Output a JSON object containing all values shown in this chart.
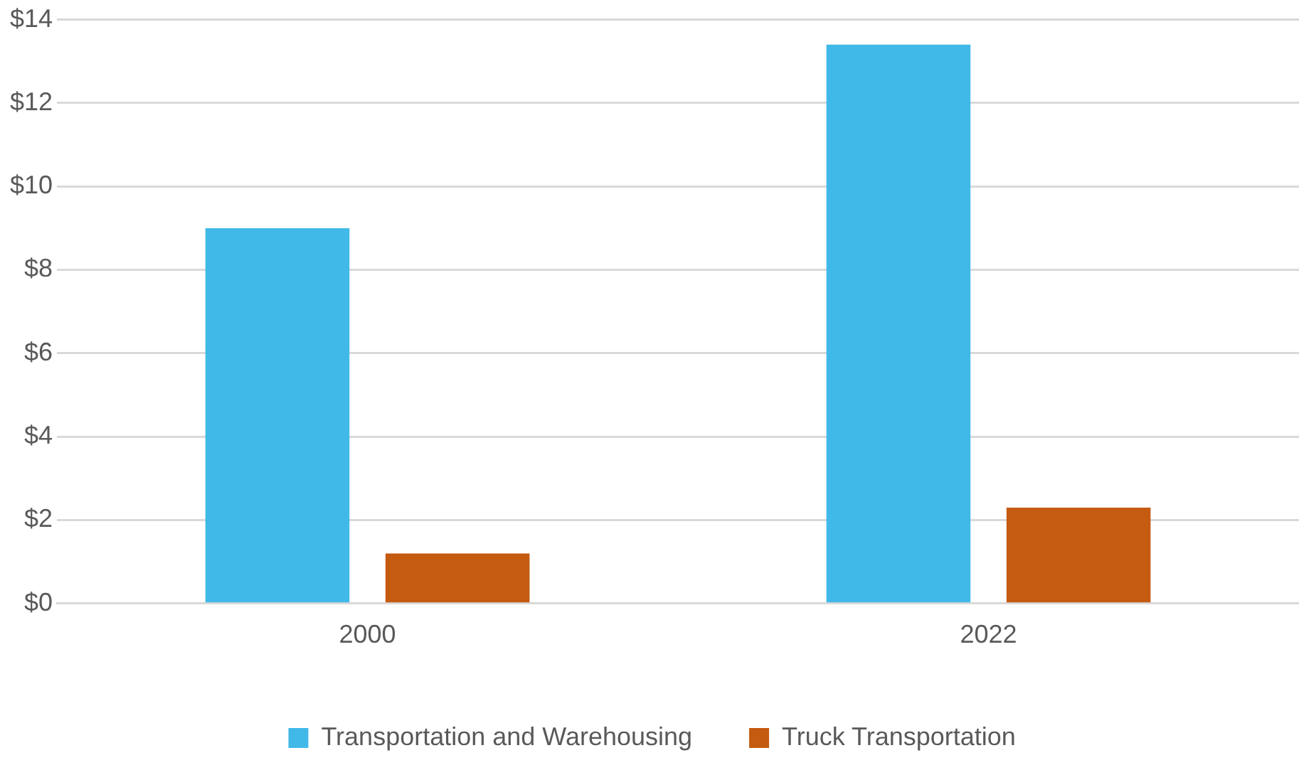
{
  "chart_data": {
    "type": "bar",
    "categories": [
      "2000",
      "2022"
    ],
    "series": [
      {
        "name": "Transportation and Warehousing",
        "color": "#41b9e8",
        "values": [
          9.0,
          13.4
        ]
      },
      {
        "name": "Truck Transportation",
        "color": "#c55a11",
        "values": [
          1.2,
          2.3
        ]
      }
    ],
    "ylim": [
      0,
      14
    ],
    "yticks": [
      {
        "value": 0,
        "label": "$0"
      },
      {
        "value": 2,
        "label": "$2"
      },
      {
        "value": 4,
        "label": "$4"
      },
      {
        "value": 6,
        "label": "$6"
      },
      {
        "value": 8,
        "label": "$8"
      },
      {
        "value": 10,
        "label": "$10"
      },
      {
        "value": 12,
        "label": "$12"
      },
      {
        "value": 14,
        "label": "$14"
      }
    ],
    "grid": "y",
    "legend": "bottom"
  }
}
